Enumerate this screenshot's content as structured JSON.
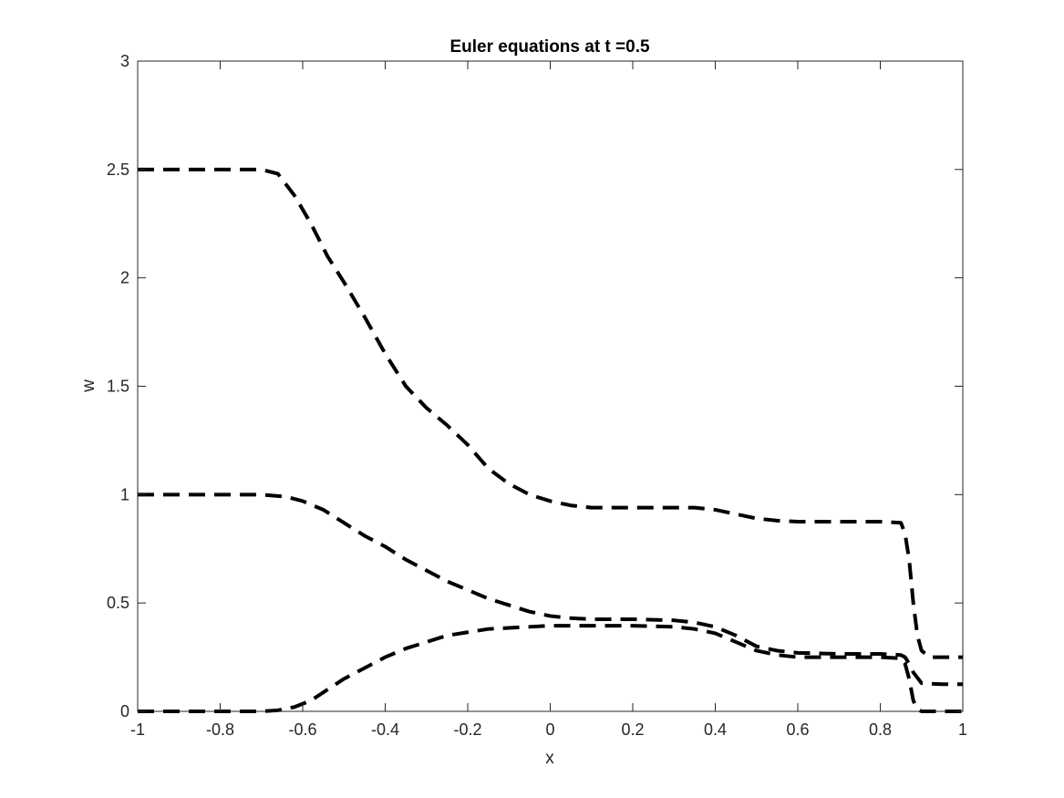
{
  "chart_data": {
    "type": "line",
    "title": "Euler equations at t =0.5",
    "xlabel": "x",
    "ylabel": "w",
    "xlim": [
      -1,
      1
    ],
    "ylim": [
      0,
      3
    ],
    "xticks": [
      -1,
      -0.8,
      -0.6,
      -0.4,
      -0.2,
      0,
      0.2,
      0.4,
      0.6,
      0.8,
      1
    ],
    "yticks": [
      0,
      0.5,
      1,
      1.5,
      2,
      2.5,
      3
    ],
    "xtick_labels": [
      "-1",
      "-0.8",
      "-0.6",
      "-0.4",
      "-0.2",
      "0",
      "0.2",
      "0.4",
      "0.6",
      "0.8",
      "1"
    ],
    "ytick_labels": [
      "0",
      "0.5",
      "1",
      "1.5",
      "2",
      "2.5",
      "3"
    ],
    "grid": false,
    "line_style": "dashed",
    "line_color": "#000000",
    "series": [
      {
        "x": [
          -1,
          -0.8,
          -0.7,
          -0.66,
          -0.62,
          -0.58,
          -0.54,
          -0.5,
          -0.45,
          -0.4,
          -0.35,
          -0.3,
          -0.25,
          -0.2,
          -0.15,
          -0.1,
          -0.05,
          0,
          0.05,
          0.1,
          0.2,
          0.3,
          0.35,
          0.4,
          0.45,
          0.5,
          0.55,
          0.6,
          0.7,
          0.8,
          0.85,
          0.86,
          0.87,
          0.88,
          0.89,
          0.9,
          0.92,
          0.95,
          1
        ],
        "y": [
          2.5,
          2.5,
          2.5,
          2.48,
          2.38,
          2.25,
          2.1,
          1.98,
          1.82,
          1.65,
          1.5,
          1.4,
          1.32,
          1.23,
          1.12,
          1.05,
          1.0,
          0.97,
          0.95,
          0.94,
          0.94,
          0.94,
          0.94,
          0.93,
          0.91,
          0.89,
          0.88,
          0.875,
          0.875,
          0.875,
          0.87,
          0.82,
          0.7,
          0.5,
          0.35,
          0.28,
          0.25,
          0.25,
          0.25
        ]
      },
      {
        "x": [
          -1,
          -0.8,
          -0.7,
          -0.64,
          -0.6,
          -0.55,
          -0.5,
          -0.45,
          -0.4,
          -0.35,
          -0.3,
          -0.25,
          -0.2,
          -0.15,
          -0.1,
          -0.05,
          0,
          0.05,
          0.1,
          0.2,
          0.3,
          0.35,
          0.4,
          0.45,
          0.5,
          0.55,
          0.6,
          0.7,
          0.8,
          0.85,
          0.86,
          0.87,
          0.88,
          0.9,
          0.95,
          1
        ],
        "y": [
          1.0,
          1.0,
          1.0,
          0.99,
          0.97,
          0.93,
          0.87,
          0.81,
          0.76,
          0.7,
          0.65,
          0.6,
          0.56,
          0.52,
          0.49,
          0.46,
          0.44,
          0.43,
          0.425,
          0.425,
          0.42,
          0.41,
          0.39,
          0.35,
          0.3,
          0.28,
          0.27,
          0.265,
          0.265,
          0.26,
          0.25,
          0.22,
          0.18,
          0.13,
          0.125,
          0.125
        ]
      },
      {
        "x": [
          -1,
          -0.8,
          -0.7,
          -0.66,
          -0.62,
          -0.58,
          -0.54,
          -0.5,
          -0.45,
          -0.4,
          -0.35,
          -0.3,
          -0.25,
          -0.2,
          -0.15,
          -0.1,
          -0.05,
          0,
          0.1,
          0.2,
          0.3,
          0.35,
          0.4,
          0.45,
          0.5,
          0.55,
          0.6,
          0.7,
          0.8,
          0.85,
          0.86,
          0.87,
          0.88,
          0.89,
          0.9,
          0.92,
          0.95,
          1
        ],
        "y": [
          0.0,
          0.0,
          0.0,
          0.005,
          0.02,
          0.05,
          0.1,
          0.15,
          0.2,
          0.25,
          0.29,
          0.32,
          0.35,
          0.365,
          0.38,
          0.385,
          0.39,
          0.395,
          0.395,
          0.395,
          0.39,
          0.38,
          0.36,
          0.32,
          0.28,
          0.26,
          0.25,
          0.25,
          0.25,
          0.245,
          0.22,
          0.15,
          0.05,
          0.01,
          0.0,
          0.0,
          0.0,
          0.0
        ]
      }
    ]
  }
}
